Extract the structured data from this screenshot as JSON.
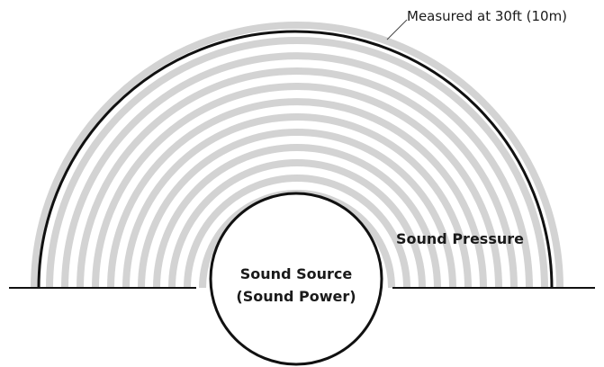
{
  "measurement_label": "Measured at 30ft (10m)",
  "pressure_label": "Sound Pressure",
  "source_label": [
    "Sound Source",
    "(Sound Power)"
  ]
}
